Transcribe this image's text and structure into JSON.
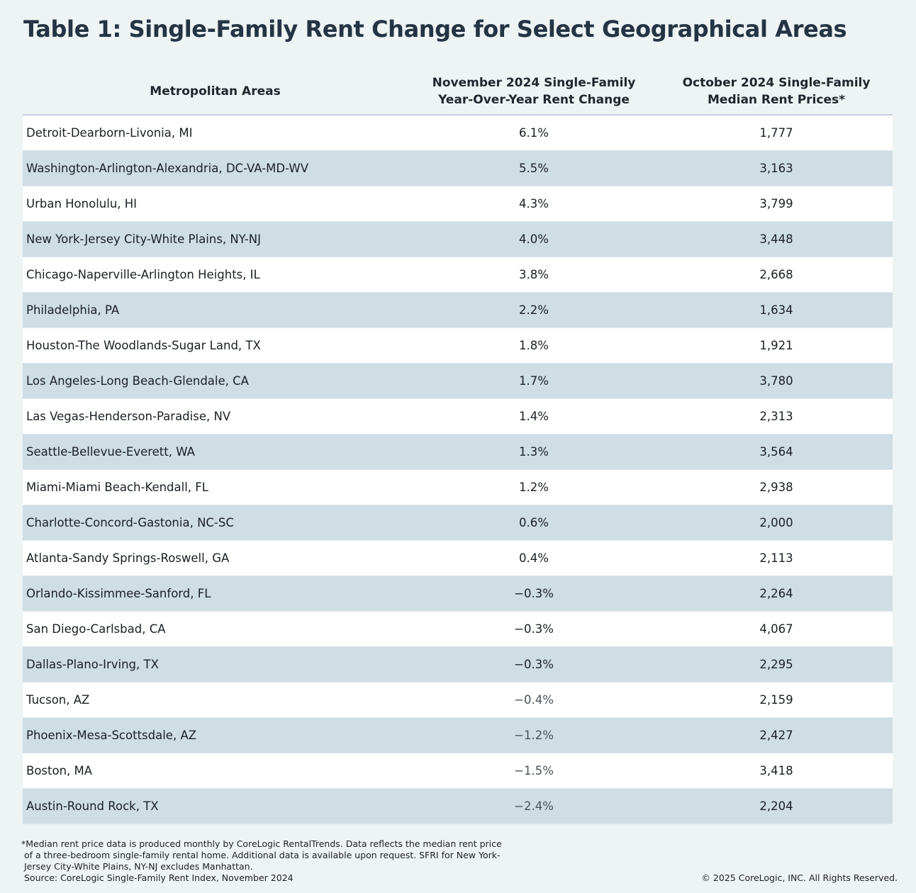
{
  "title": "Table 1: Single-Family Rent Change for Select Geographical Areas",
  "columns": {
    "area": "Metropolitan Areas",
    "change_line1": "November 2024 Single-Family",
    "change_line2": "Year-Over-Year Rent Change",
    "price_line1": "October 2024 Single-Family",
    "price_line2": "Median Rent Prices*"
  },
  "rows": [
    {
      "area": "Detroit-Dearborn-Livonia, MI",
      "change": "6.1%",
      "price": "1,777"
    },
    {
      "area": "Washington-Arlington-Alexandria, DC-VA-MD-WV",
      "change": "5.5%",
      "price": "3,163"
    },
    {
      "area": "Urban Honolulu, HI",
      "change": "4.3%",
      "price": "3,799"
    },
    {
      "area": "New York-Jersey City-White Plains, NY-NJ",
      "change": "4.0%",
      "price": "3,448"
    },
    {
      "area": "Chicago-Naperville-Arlington Heights, IL",
      "change": "3.8%",
      "price": "2,668"
    },
    {
      "area": "Philadelphia, PA",
      "change": "2.2%",
      "price": "1,634"
    },
    {
      "area": "Houston-The Woodlands-Sugar Land, TX",
      "change": "1.8%",
      "price": "1,921"
    },
    {
      "area": "Los Angeles-Long Beach-Glendale, CA",
      "change": "1.7%",
      "price": "3,780"
    },
    {
      "area": "Las Vegas-Henderson-Paradise, NV",
      "change": "1.4%",
      "price": "2,313"
    },
    {
      "area": "Seattle-Bellevue-Everett, WA",
      "change": "1.3%",
      "price": "3,564"
    },
    {
      "area": "Miami-Miami Beach-Kendall, FL",
      "change": "1.2%",
      "price": "2,938"
    },
    {
      "area": "Charlotte-Concord-Gastonia, NC-SC",
      "change": "0.6%",
      "price": "2,000"
    },
    {
      "area": "Atlanta-Sandy Springs-Roswell, GA",
      "change": "0.4%",
      "price": "2,113"
    },
    {
      "area": "Orlando-Kissimmee-Sanford, FL",
      "change": "−0.3%",
      "price": "2,264"
    },
    {
      "area": "San Diego-Carlsbad, CA",
      "change": "−0.3%",
      "price": "4,067"
    },
    {
      "area": "Dallas-Plano-Irving, TX",
      "change": "−0.3%",
      "price": "2,295"
    },
    {
      "area": "Tucson, AZ",
      "change": "−0.4%",
      "price": "2,159"
    },
    {
      "area": "Phoenix-Mesa-Scottsdale, AZ",
      "change": "−1.2%",
      "price": "2,427"
    },
    {
      "area": "Boston, MA",
      "change": "−1.5%",
      "price": "3,418"
    },
    {
      "area": "Austin-Round Rock, TX",
      "change": "−2.4%",
      "price": "2,204"
    }
  ],
  "footnote": {
    "line1": "*Median rent price data is produced monthly by CoreLogic RentalTrends. Data reflects the median rent price",
    "line2": "of a three-bedroom single-family rental home. Additional data is available upon request. SFRI for New York-",
    "line3": "Jersey City-White Plains, NY-NJ excludes Manhattan.",
    "source": "Source: CoreLogic Single-Family Rent Index, November 2024"
  },
  "copyright": "© 2025 CoreLogic, INC. All Rights Reserved."
}
